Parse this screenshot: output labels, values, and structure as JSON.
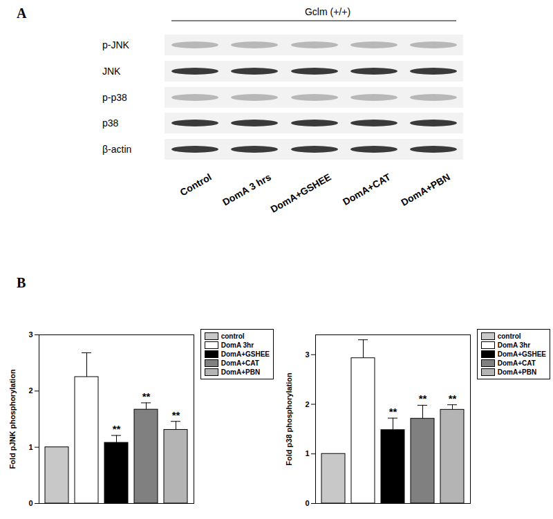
{
  "panel_labels": [
    "A",
    "B"
  ],
  "blot": {
    "header": "Gclm (+/+)",
    "rows": [
      "p-JNK",
      "JNK",
      "p-p38",
      "p38",
      "β-actin"
    ],
    "lanes": [
      "Control",
      "DomA  3 hrs",
      "DomA+GSHEE",
      "DomA+CAT",
      "DomA+PBN"
    ]
  },
  "chart_data": [
    {
      "type": "bar",
      "ylabel": "Fold pJNK phosphorylation",
      "categories": [
        "control",
        "DomA 3hr",
        "DomA+GSHEE",
        "DomA+CAT",
        "DomA+PBN"
      ],
      "values": [
        1.0,
        2.25,
        1.08,
        1.67,
        1.31
      ],
      "errors": [
        null,
        0.43,
        0.13,
        0.12,
        0.15
      ],
      "colors": [
        "#c8c8c8",
        "#ffffff",
        "#000000",
        "#808080",
        "#b4b4b4"
      ],
      "ylim": [
        0,
        3
      ],
      "yticks": [
        0,
        1,
        2,
        3
      ],
      "legend": "top-right",
      "tick_labels": "y",
      "annotations": [
        {
          "category": "DomA+GSHEE",
          "text": "**"
        },
        {
          "category": "DomA+CAT",
          "text": "**"
        },
        {
          "category": "DomA+PBN",
          "text": "**"
        }
      ]
    },
    {
      "type": "bar",
      "ylabel": "Fold p38 phosphorylation",
      "categories": [
        "control",
        "DomA 3hr",
        "DomA+GSHEE",
        "DomA+CAT",
        "DomA+PBN"
      ],
      "values": [
        1.0,
        2.93,
        1.48,
        1.71,
        1.89
      ],
      "errors": [
        null,
        0.37,
        0.24,
        0.27,
        0.1
      ],
      "colors": [
        "#c8c8c8",
        "#ffffff",
        "#000000",
        "#808080",
        "#b4b4b4"
      ],
      "ylim": [
        0,
        3.4
      ],
      "yticks": [
        0,
        1,
        2,
        3
      ],
      "legend": "top-right",
      "tick_labels": "y",
      "annotations": [
        {
          "category": "DomA+GSHEE",
          "text": "**"
        },
        {
          "category": "DomA+CAT",
          "text": "**"
        },
        {
          "category": "DomA+PBN",
          "text": "**"
        }
      ]
    }
  ]
}
